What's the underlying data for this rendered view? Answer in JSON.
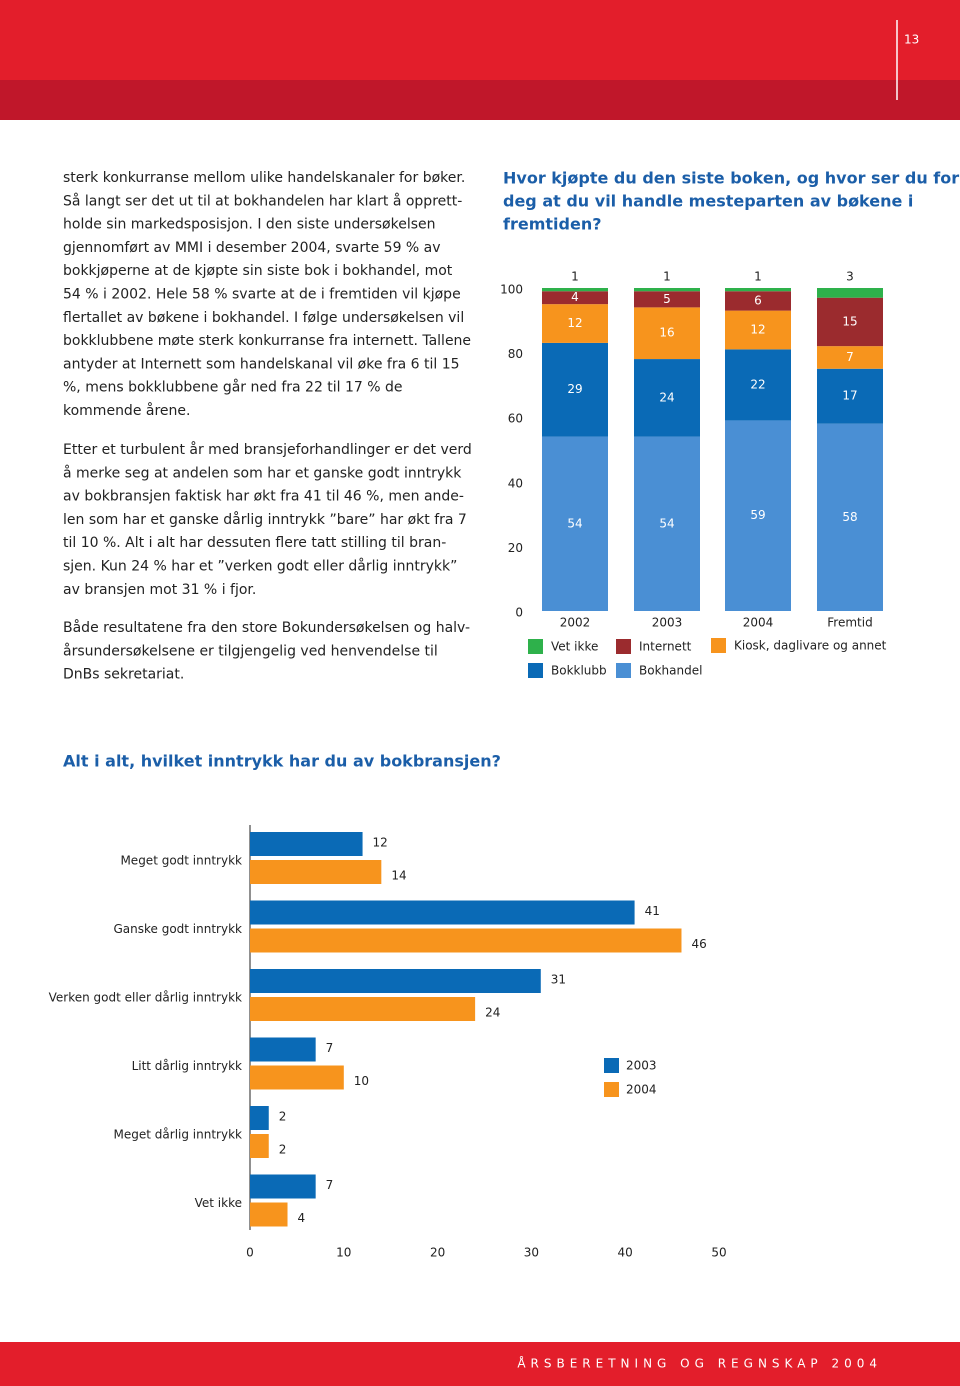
{
  "header": {
    "page_number": "13"
  },
  "paragraphs": [
    [
      "sterk konkurranse mellom ulike handelskanaler for bøker.",
      "Så langt ser det ut til at bokhandelen har klart å opprett-",
      "holde sin markedsposisjon. I den siste undersøkelsen",
      "gjennomført av MMI i desember 2004, svarte 59 % av",
      "bokkjøperne at de kjøpte sin siste bok i bokhandel, mot",
      "54 % i 2002. Hele 58 % svarte at de i fremtiden vil kjøpe",
      "flertallet av bøkene i bokhandel. I følge undersøkelsen vil",
      "bokklubbene møte sterk konkurranse fra internett. Tallene",
      "antyder at Internett som handelskanal vil øke fra 6 til 15",
      "%, mens bokklubbene går ned fra 22 til 17 % de",
      "kommende årene."
    ],
    [
      "Etter et turbulent år med bransjeforhandlinger er det verd",
      "å merke seg at andelen som har et ganske godt inntrykk",
      "av bokbransjen faktisk har økt fra 41 til 46 %, men ande-",
      "len som har et ganske dårlig inntrykk ”bare” har økt fra 7",
      "til 10 %. Alt i alt har dessuten flere tatt stilling til bran-",
      "sjen. Kun 24 % har et ”verken godt eller dårlig inntrykk”",
      "av bransjen mot 31 % i fjor."
    ],
    [
      "Både resultatene fra den store Bokundersøkelsen og halv-",
      "årsundersøkelsene er tilgjengelig ved henvendelse til",
      "DnBs sekretariat."
    ]
  ],
  "chart_data": [
    {
      "type": "stacked_bar",
      "title": [
        "Hvor kjøpte du den siste boken, og hvor ser du for",
        "deg at du vil handle mesteparten av bøkene i",
        "fremtiden?"
      ],
      "categories": [
        "2002",
        "2003",
        "2004",
        "Fremtid"
      ],
      "series": [
        {
          "name": "Vet ikke",
          "color": "#2eb14b",
          "values": [
            1,
            1,
            1,
            3
          ]
        },
        {
          "name": "Internett",
          "color": "#9b2b2e",
          "values": [
            4,
            5,
            6,
            15
          ]
        },
        {
          "name": "Kiosk, daglivare og annet",
          "color": "#f7941d",
          "values": [
            12,
            16,
            12,
            7
          ]
        },
        {
          "name": "Bokklubb",
          "color": "#0a6ab6",
          "values": [
            29,
            24,
            22,
            17
          ]
        },
        {
          "name": "Bokhandel",
          "color": "#4a8fd4",
          "values": [
            54,
            54,
            59,
            58
          ]
        }
      ],
      "ylim": [
        0,
        100
      ],
      "yticks": [
        0,
        20,
        40,
        60,
        80,
        100
      ]
    },
    {
      "type": "grouped_barh",
      "title": "Alt i alt, hvilket inntrykk har du av bokbransjen?",
      "categories": [
        "Meget godt inntrykk",
        "Ganske godt inntrykk",
        "Verken godt eller dårlig inntrykk",
        "Litt dårlig inntrykk",
        "Meget dårlig inntrykk",
        "Vet ikke"
      ],
      "series": [
        {
          "name": "2003",
          "color": "#0a6ab6",
          "values": [
            12,
            41,
            31,
            7,
            2,
            7
          ]
        },
        {
          "name": "2004",
          "color": "#f7941d",
          "values": [
            14,
            46,
            24,
            10,
            2,
            4
          ]
        }
      ],
      "xlim": [
        0,
        50
      ],
      "xticks": [
        0,
        10,
        20,
        30,
        40,
        50
      ]
    }
  ],
  "footer": {
    "text": "ÅRSBERETNING OG REGNSKAP 2004"
  }
}
